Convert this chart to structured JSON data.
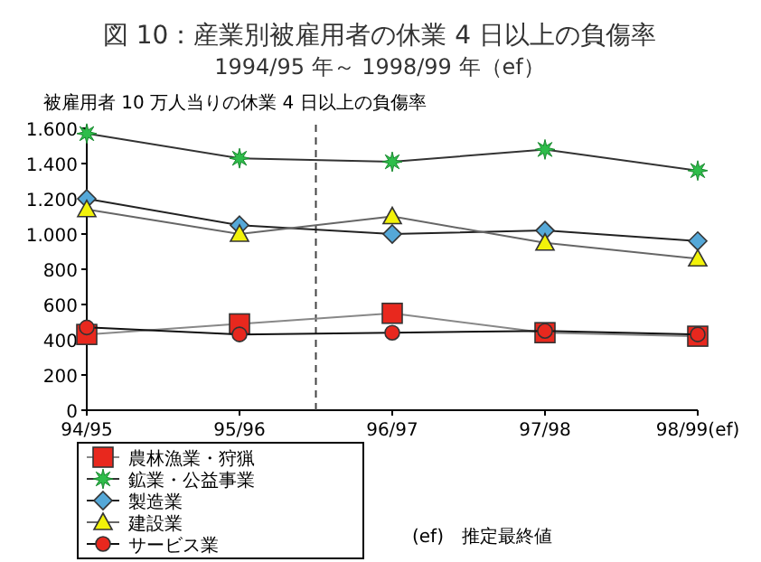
{
  "chart_data": {
    "type": "line",
    "title": "図 10：産業別被雇用者の休業 4 日以上の負傷率",
    "subtitle": "1994/95 年～ 1998/99 年（ef）",
    "ylabel": "被雇用者 10 万人当りの休業 4 日以上の負傷率",
    "categories": [
      "94/95",
      "95/96",
      "96/97",
      "97/98",
      "98/99(ef)"
    ],
    "series": [
      {
        "name": "農林漁業・狩猟",
        "color": "#e8281e",
        "marker": "square",
        "values": [
          430,
          490,
          550,
          440,
          420
        ]
      },
      {
        "name": "鉱業・公益事業",
        "color": "#2ebd4a",
        "marker": "star",
        "values": [
          1570,
          1430,
          1410,
          1480,
          1360
        ]
      },
      {
        "name": "製造業",
        "color": "#55a8d8",
        "marker": "diamond",
        "values": [
          1200,
          1050,
          1000,
          1020,
          960
        ]
      },
      {
        "name": "建設業",
        "color": "#f2f20a",
        "marker": "triangle",
        "values": [
          1140,
          1000,
          1100,
          950,
          860
        ]
      },
      {
        "name": "サービス業",
        "color": "#e8281e",
        "marker": "circle",
        "values": [
          470,
          430,
          440,
          450,
          430
        ]
      }
    ],
    "ylim": [
      0,
      1600
    ],
    "yticks": [
      0,
      200,
      400,
      600,
      800,
      {
        "value": 1000,
        "label": "1.000"
      },
      {
        "value": 1200,
        "label": "1.200"
      },
      {
        "value": 1400,
        "label": "1.400"
      },
      {
        "value": 1600,
        "label": "1.600"
      }
    ],
    "legend": "bottom left",
    "annotations": [
      "(ef)　推定最終値"
    ]
  }
}
